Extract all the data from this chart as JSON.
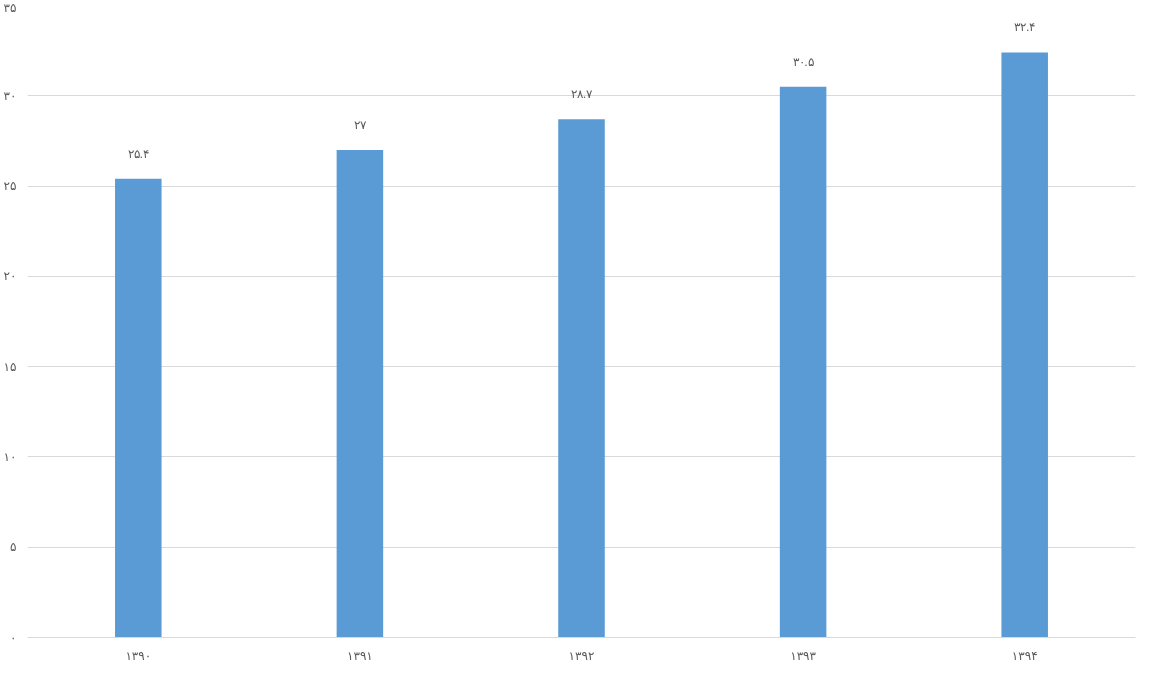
{
  "chart_data": {
    "type": "bar",
    "categories": [
      "۱۳۹۰",
      "۱۳۹۱",
      "۱۳۹۲",
      "۱۳۹۳",
      "۱۳۹۴"
    ],
    "values": [
      25.4,
      27,
      28.7,
      30.5,
      32.4
    ],
    "color": "#5b9bd5",
    "value_labels": [
      "۲۵.۴",
      "۲۷",
      "۲۸.۷",
      "۳۰.۵",
      "۳۲.۴"
    ],
    "ylim": [
      0,
      35
    ],
    "yticks": [
      {
        "value": 0,
        "label": "۰"
      },
      {
        "value": 5,
        "label": "۵"
      },
      {
        "value": 10,
        "label": "۱۰"
      },
      {
        "value": 15,
        "label": "۱۵"
      },
      {
        "value": 20,
        "label": "۲۰"
      },
      {
        "value": 25,
        "label": "۲۵"
      },
      {
        "value": 30,
        "label": "۳۰"
      },
      {
        "value": 35,
        "label": "۳۵"
      }
    ],
    "grid": "y"
  }
}
